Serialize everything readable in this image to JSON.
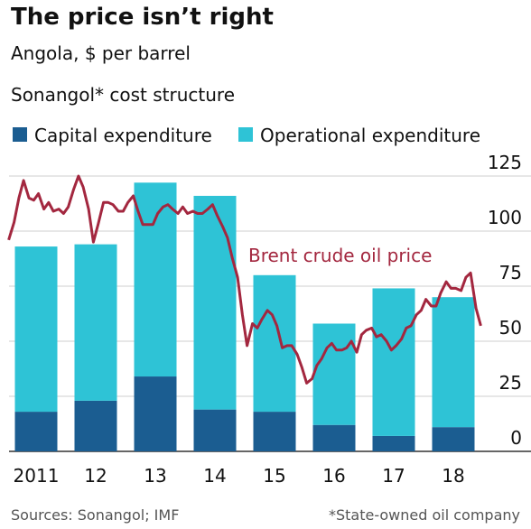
{
  "chart_data": {
    "type": "bar",
    "stacked": true,
    "title": "The price isn’t right",
    "subtitle": "Angola, $ per barrel",
    "panel_title": "Sonangol* cost structure",
    "categories": [
      "2011",
      "12",
      "13",
      "14",
      "15",
      "16",
      "17",
      "18"
    ],
    "series": [
      {
        "name": "Capital expenditure",
        "color": "#1b5d91",
        "values": [
          18,
          23,
          34,
          19,
          18,
          12,
          7,
          11
        ]
      },
      {
        "name": "Operational expenditure",
        "color": "#2ec3d6",
        "values": [
          75,
          71,
          88,
          97,
          62,
          46,
          67,
          59
        ]
      }
    ],
    "line": {
      "name": "Brent crude oil price",
      "color": "#a3273f",
      "x": [
        2011.04,
        2011.13,
        2011.21,
        2011.29,
        2011.38,
        2011.46,
        2011.54,
        2011.63,
        2011.71,
        2011.79,
        2011.88,
        2011.96,
        2012.04,
        2012.13,
        2012.21,
        2012.29,
        2012.38,
        2012.46,
        2012.54,
        2012.63,
        2012.71,
        2012.79,
        2012.88,
        2012.96,
        2013.04,
        2013.13,
        2013.21,
        2013.29,
        2013.38,
        2013.46,
        2013.54,
        2013.63,
        2013.71,
        2013.79,
        2013.88,
        2013.96,
        2014.04,
        2014.13,
        2014.21,
        2014.29,
        2014.38,
        2014.46,
        2014.54,
        2014.63,
        2014.71,
        2014.79,
        2014.88,
        2014.96,
        2015.04,
        2015.13,
        2015.21,
        2015.29,
        2015.38,
        2015.46,
        2015.54,
        2015.63,
        2015.71,
        2015.79,
        2015.88,
        2015.96,
        2016.04,
        2016.13,
        2016.21,
        2016.29,
        2016.38,
        2016.46,
        2016.54,
        2016.63,
        2016.71,
        2016.79,
        2016.88,
        2016.96,
        2017.04,
        2017.13,
        2017.21,
        2017.29,
        2017.38,
        2017.46,
        2017.54,
        2017.63,
        2017.71,
        2017.79,
        2017.88,
        2017.96,
        2018.04,
        2018.13,
        2018.21,
        2018.29,
        2018.38,
        2018.46,
        2018.54,
        2018.63,
        2018.71,
        2018.79,
        2018.88,
        2018.96
      ],
      "values": [
        96,
        104,
        115,
        123,
        115,
        114,
        117,
        110,
        113,
        109,
        110,
        108,
        111,
        119,
        125,
        120,
        110,
        95,
        103,
        113,
        113,
        112,
        109,
        109,
        113,
        116,
        109,
        103,
        103,
        103,
        108,
        111,
        112,
        110,
        108,
        111,
        108,
        109,
        108,
        108,
        110,
        112,
        107,
        102,
        97,
        88,
        79,
        62,
        48,
        58,
        56,
        60,
        64,
        62,
        57,
        47,
        48,
        48,
        44,
        38,
        31,
        33,
        39,
        42,
        47,
        49,
        46,
        46,
        47,
        50,
        45,
        53,
        55,
        56,
        52,
        53,
        50,
        46,
        48,
        51,
        56,
        57,
        62,
        64,
        69,
        66,
        66,
        72,
        77,
        74,
        74,
        73,
        79,
        81,
        65,
        57
      ]
    },
    "xlim": [
      2011,
      2019
    ],
    "ylim": [
      0,
      125
    ],
    "yticks": [
      0,
      25,
      50,
      75,
      100,
      125
    ],
    "grid": true,
    "source": "Sources: Sonangol; IMF",
    "note": "*State-owned oil company"
  }
}
